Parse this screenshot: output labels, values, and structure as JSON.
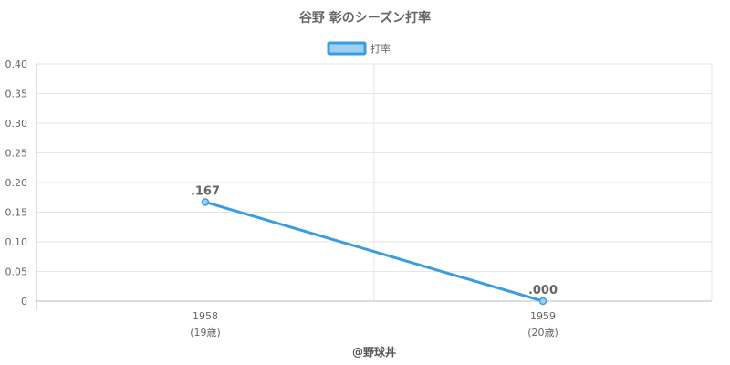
{
  "chart_data": {
    "type": "line",
    "title": "谷野 彰のシーズン打率",
    "legend": {
      "label": "打率",
      "placement": "top-center",
      "color": "#3b9de0",
      "fill": "#9fd0f3"
    },
    "x": [
      "1958",
      "1959"
    ],
    "x_sublabels": [
      "(19歳)",
      "(20歳)"
    ],
    "series": [
      {
        "name": "打率",
        "values": [
          0.167,
          0.0
        ],
        "labels": [
          ".167",
          ".000"
        ],
        "color": "#3b9de0"
      }
    ],
    "y_ticks": [
      "0",
      "0.05",
      "0.10",
      "0.15",
      "0.20",
      "0.25",
      "0.30",
      "0.35",
      "0.40"
    ],
    "ylim": [
      0,
      0.4
    ],
    "grid": true
  },
  "credit": "@野球丼"
}
